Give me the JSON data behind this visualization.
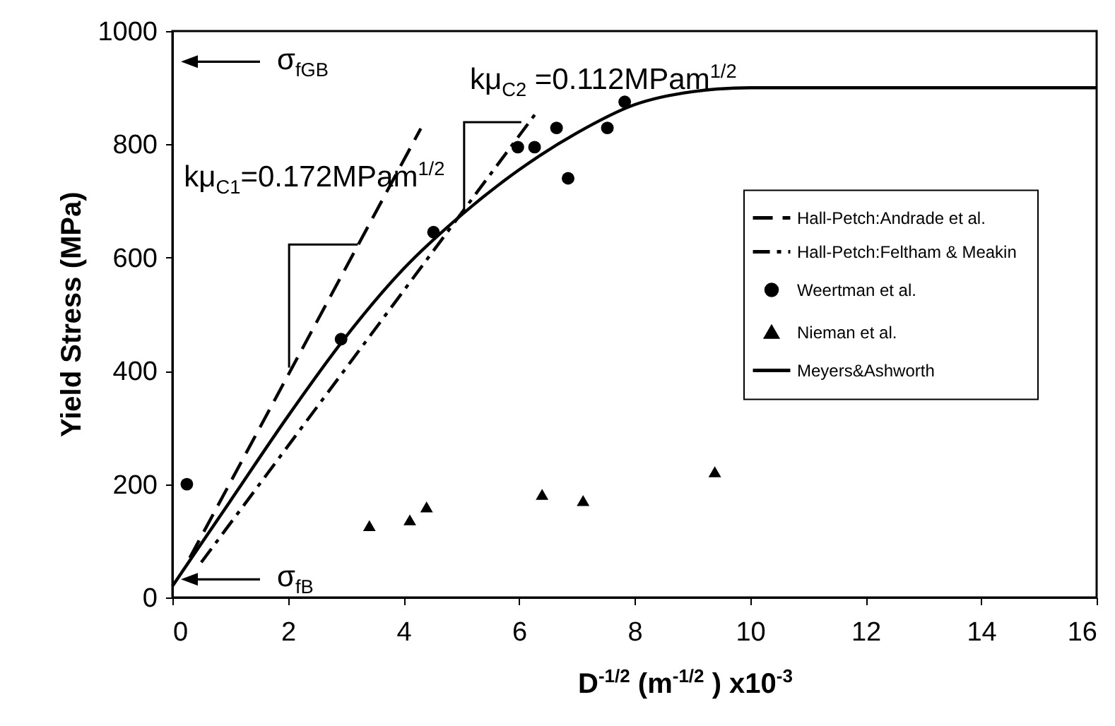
{
  "chart_data": {
    "type": "line",
    "xlabel": "D$^{-1/2}$ (m$^{-1/2}$ ) x10$^{-3}$",
    "ylabel": "Yield Stress (MPa)",
    "xlim": [
      0,
      16
    ],
    "xticks": [
      0,
      2,
      4,
      6,
      8,
      10,
      12,
      14,
      16
    ],
    "ylim": [
      0,
      1000
    ],
    "yticks": [
      0,
      200,
      400,
      600,
      800,
      {
        "value": 1000,
        "label": "1000"
      }
    ],
    "grid": false,
    "legend": "right",
    "series": [
      {
        "name": "Hall-Petch:Andrade et al.",
        "type": "line",
        "line_style": "dashed",
        "color": "#000000",
        "x": [
          0.3,
          4.3
        ],
        "values": [
          70,
          828
        ]
      },
      {
        "name": "Hall-Petch:Feltham & Meakin",
        "type": "line",
        "line_style": "dashdot",
        "color": "#000000",
        "x": [
          0.5,
          6.3
        ],
        "values": [
          62,
          856
        ]
      },
      {
        "name": "Weertman et al.",
        "type": "scatter",
        "marker": "circle",
        "color": "#000000",
        "x": [
          0.25,
          2.92,
          4.52,
          5.98,
          6.27,
          6.65,
          6.85,
          7.53,
          7.83
        ],
        "values": [
          200,
          456,
          645,
          795,
          795,
          829,
          740,
          829,
          875
        ]
      },
      {
        "name": "Nieman et al.",
        "type": "scatter",
        "marker": "triangle",
        "color": "#000000",
        "x": [
          3.41,
          4.11,
          4.4,
          6.4,
          7.11,
          9.39
        ],
        "values": [
          127,
          137,
          160,
          182,
          171,
          222
        ]
      },
      {
        "name": "Meyers&Ashworth",
        "type": "line",
        "line_style": "solid",
        "color": "#000000",
        "x": [
          0,
          1,
          2,
          3,
          4,
          5,
          6,
          7,
          8,
          9,
          10,
          12,
          16
        ],
        "values": [
          20,
          170,
          320,
          460,
          580,
          675,
          755,
          820,
          870,
          893,
          900,
          900,
          900
        ]
      }
    ],
    "annotations": [
      "σ$_{fGB}$",
      "σ$_{fB}$",
      "kμ$_{C1}$=0.172MPam$^{1/2}$",
      {
        "text": "kμ$_{C2}$ =0.112MPam$^{1/2}$",
        "x": 5.05,
        "y": 685
      }
    ]
  }
}
